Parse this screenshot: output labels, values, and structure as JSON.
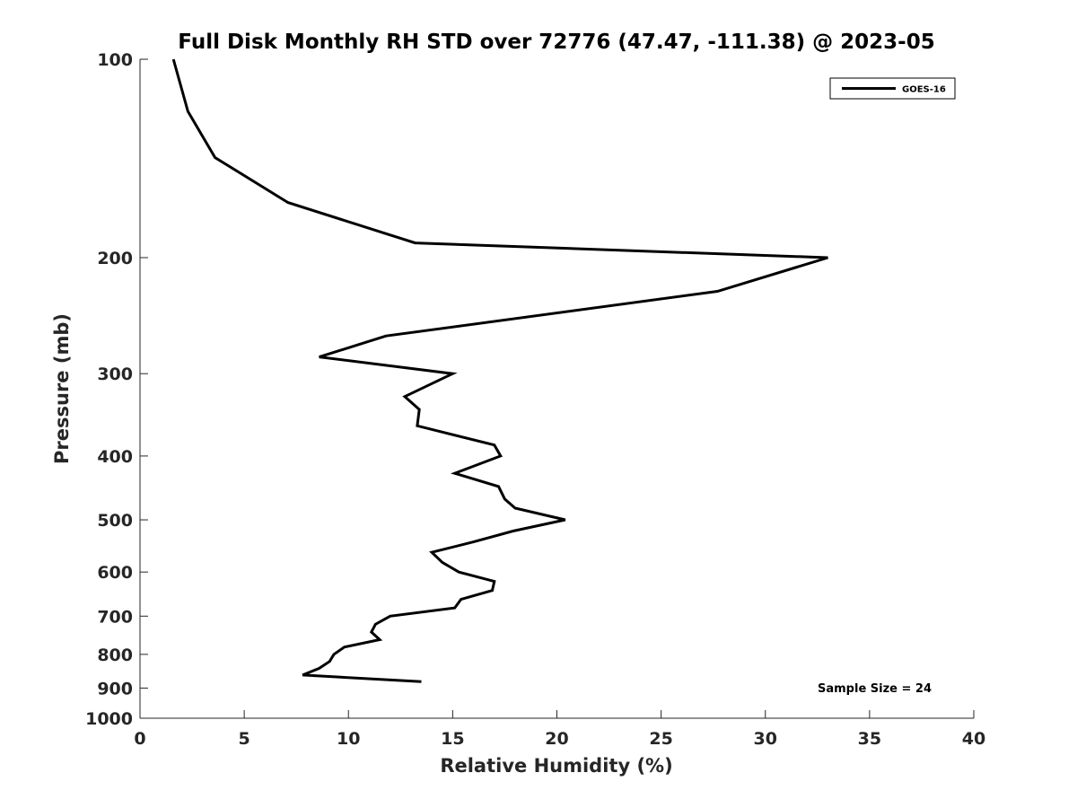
{
  "chart_data": {
    "type": "line",
    "title": "Full Disk Monthly RH STD over 72776 (47.47, -111.38) @ 2023-05",
    "xlabel": "Relative Humidity (%)",
    "ylabel": "Pressure (mb)",
    "xlim": [
      0,
      40
    ],
    "ylim": [
      100,
      1000
    ],
    "y_scale": "log",
    "y_reversed": true,
    "grid": false,
    "legend_position": "top-right",
    "x_ticks": [
      0,
      5,
      10,
      15,
      20,
      25,
      30,
      35,
      40
    ],
    "x_tick_labels": [
      "0",
      "5",
      "10",
      "15",
      "20",
      "25",
      "30",
      "35",
      "40"
    ],
    "y_ticks": [
      100,
      200,
      300,
      400,
      500,
      600,
      700,
      800,
      900,
      1000
    ],
    "y_tick_labels": [
      "100",
      "200",
      "300",
      "400",
      "500",
      "600",
      "700",
      "800",
      "900",
      "1000"
    ],
    "series": [
      {
        "name": "GOES-16",
        "color": "#000000",
        "x": [
          1.6,
          2.3,
          3.6,
          7.1,
          13.2,
          33.0,
          27.7,
          11.8,
          8.6,
          15.0,
          12.7,
          13.4,
          13.3,
          17.0,
          17.3,
          15.1,
          17.2,
          17.5,
          18.0,
          20.4,
          17.9,
          16.0,
          14.0,
          14.5,
          15.3,
          17.0,
          16.9,
          15.4,
          15.1,
          12.0,
          11.3,
          11.1,
          11.5,
          9.8,
          9.3,
          9.1,
          8.6,
          7.8,
          13.5
        ],
        "y": [
          100,
          120,
          141,
          165,
          190,
          200,
          225,
          263,
          283,
          300,
          325,
          340,
          360,
          385,
          400,
          425,
          445,
          465,
          480,
          500,
          520,
          540,
          560,
          580,
          600,
          620,
          640,
          660,
          680,
          700,
          720,
          740,
          760,
          780,
          800,
          820,
          840,
          860,
          880
        ]
      }
    ],
    "annotations": [
      "Sample Size = 24"
    ]
  }
}
